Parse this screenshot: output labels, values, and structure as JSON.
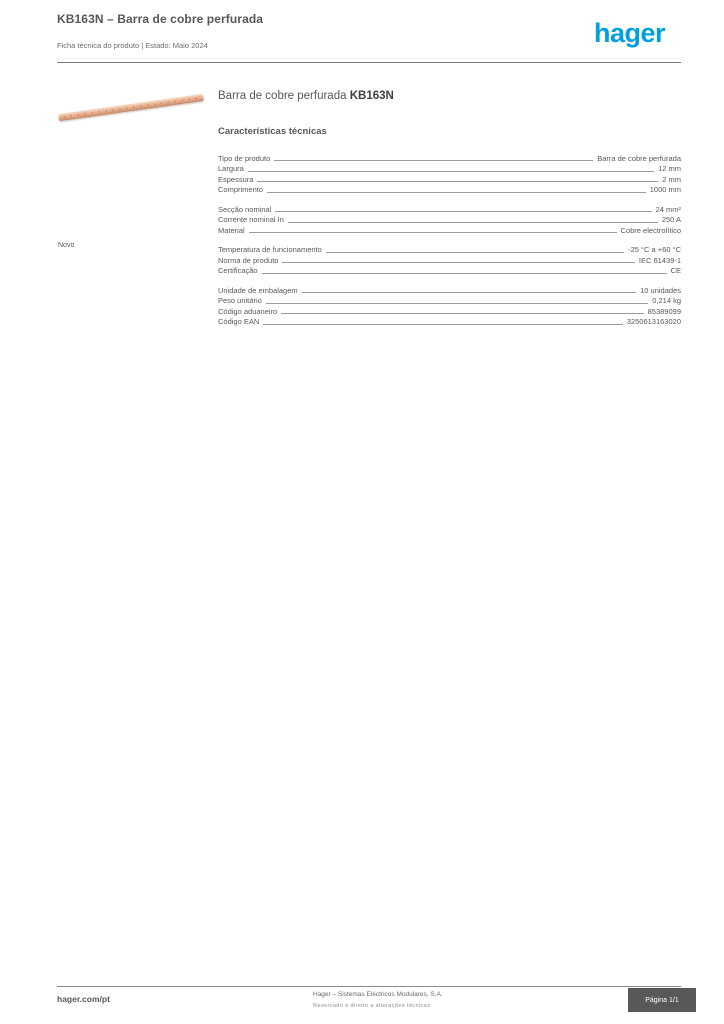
{
  "colors": {
    "text_gray": "#58585a",
    "hager_blue": "#00a0df",
    "copper": "#e2a98c",
    "rule_gray": "#9b9b9e"
  },
  "header": {
    "title": "KB163N – Barra de cobre perfurada",
    "subtitle": "Ficha técnica do produto | Estado: Maio 2024",
    "brand": "hager"
  },
  "product": {
    "name": "Barra de cobre perfurada ",
    "reference": "KB163N",
    "section_heading": "Características técnicas",
    "new_label": "Novo"
  },
  "specs": {
    "groups": [
      {
        "rows": [
          {
            "label": "Tipo de produto",
            "value": "Barra de cobre perfurada"
          },
          {
            "label": "Largura",
            "value": "12 mm"
          },
          {
            "label": "Espessura",
            "value": "2 mm"
          },
          {
            "label": "Comprimento",
            "value": "1000 mm"
          }
        ]
      },
      {
        "rows": [
          {
            "label": "Secção nominal",
            "value": "24 mm²"
          },
          {
            "label": "Corrente nominal In",
            "value": "250 A"
          },
          {
            "label": "Material",
            "value": "Cobre electrolítico"
          }
        ]
      },
      {
        "rows": [
          {
            "label": "Temperatura de funcionamento",
            "value": "-25 °C a +60 °C"
          },
          {
            "label": "Norma de produto",
            "value": "IEC 61439-1"
          },
          {
            "label": "Certificação",
            "value": "CE"
          }
        ]
      },
      {
        "rows": [
          {
            "label": "Unidade de embalagem",
            "value": "10 unidades"
          },
          {
            "label": "Peso unitário",
            "value": "0,214 kg"
          },
          {
            "label": "Código aduaneiro",
            "value": "85389099"
          },
          {
            "label": "Código EAN",
            "value": "3250613163020"
          }
        ]
      }
    ]
  },
  "footer": {
    "website": "hager.com/pt",
    "info_line1": "Hager – Sistemas Eléctricos Modulares, S.A.",
    "info_line2": "Reservado o direito a alterações técnicas",
    "page_label": "Página 1/1"
  }
}
